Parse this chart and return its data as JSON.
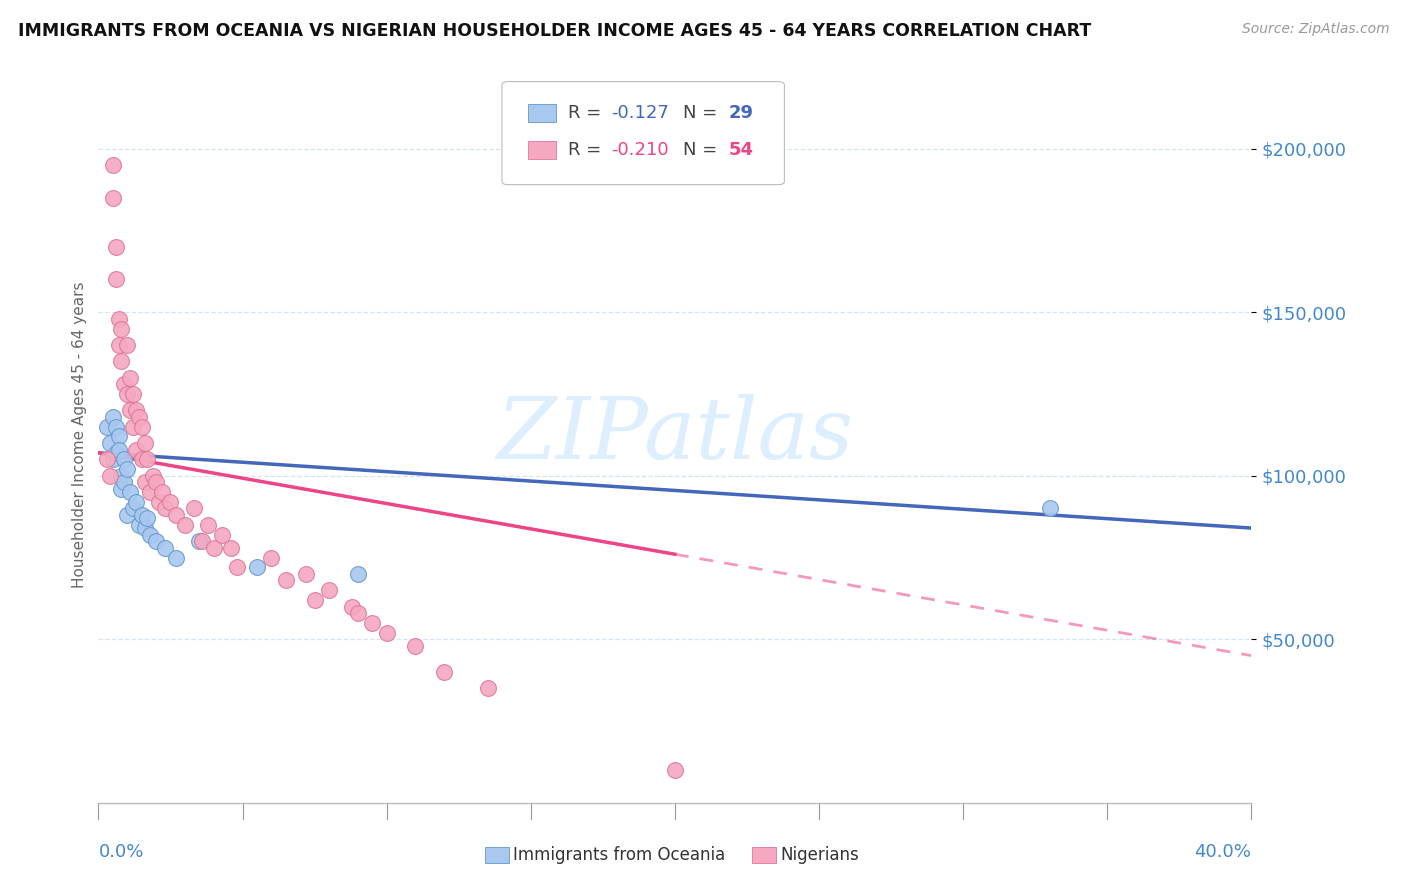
{
  "title": "IMMIGRANTS FROM OCEANIA VS NIGERIAN HOUSEHOLDER INCOME AGES 45 - 64 YEARS CORRELATION CHART",
  "source": "Source: ZipAtlas.com",
  "ylabel": "Householder Income Ages 45 - 64 years",
  "xmin": 0.0,
  "xmax": 0.4,
  "ymin": 0,
  "ymax": 225000,
  "yticks": [
    50000,
    100000,
    150000,
    200000
  ],
  "ytick_labels": [
    "$50,000",
    "$100,000",
    "$150,000",
    "$200,000"
  ],
  "color_blue": "#A8C8F0",
  "color_pink": "#F5A8C0",
  "color_blue_edge": "#6699CC",
  "color_pink_edge": "#DD7799",
  "color_trendline_blue": "#4466BB",
  "color_trendline_pink": "#EE4488",
  "color_axis_labels": "#4488CC",
  "watermark_color": "#DDEEFF",
  "oceania_x": [
    0.003,
    0.004,
    0.005,
    0.005,
    0.006,
    0.006,
    0.007,
    0.007,
    0.008,
    0.008,
    0.009,
    0.009,
    0.01,
    0.01,
    0.011,
    0.012,
    0.013,
    0.014,
    0.015,
    0.016,
    0.017,
    0.018,
    0.02,
    0.023,
    0.027,
    0.035,
    0.055,
    0.09,
    0.33
  ],
  "oceania_y": [
    115000,
    110000,
    118000,
    105000,
    115000,
    107000,
    112000,
    108000,
    100000,
    96000,
    105000,
    98000,
    102000,
    88000,
    95000,
    90000,
    92000,
    85000,
    88000,
    84000,
    87000,
    82000,
    80000,
    78000,
    75000,
    80000,
    72000,
    70000,
    90000
  ],
  "nigerian_x": [
    0.003,
    0.004,
    0.005,
    0.005,
    0.006,
    0.006,
    0.007,
    0.007,
    0.008,
    0.008,
    0.009,
    0.01,
    0.01,
    0.011,
    0.011,
    0.012,
    0.012,
    0.013,
    0.013,
    0.014,
    0.015,
    0.015,
    0.016,
    0.016,
    0.017,
    0.018,
    0.019,
    0.02,
    0.021,
    0.022,
    0.023,
    0.025,
    0.027,
    0.03,
    0.033,
    0.036,
    0.038,
    0.04,
    0.043,
    0.046,
    0.048,
    0.06,
    0.065,
    0.072,
    0.075,
    0.08,
    0.088,
    0.09,
    0.095,
    0.1,
    0.11,
    0.12,
    0.135,
    0.2
  ],
  "nigerian_y": [
    105000,
    100000,
    195000,
    185000,
    170000,
    160000,
    148000,
    140000,
    145000,
    135000,
    128000,
    140000,
    125000,
    130000,
    120000,
    125000,
    115000,
    120000,
    108000,
    118000,
    115000,
    105000,
    110000,
    98000,
    105000,
    95000,
    100000,
    98000,
    92000,
    95000,
    90000,
    92000,
    88000,
    85000,
    90000,
    80000,
    85000,
    78000,
    82000,
    78000,
    72000,
    75000,
    68000,
    70000,
    62000,
    65000,
    60000,
    58000,
    55000,
    52000,
    48000,
    40000,
    35000,
    10000
  ],
  "trendline_blue_x0": 0.0,
  "trendline_blue_y0": 107000,
  "trendline_blue_x1": 0.4,
  "trendline_blue_y1": 84000,
  "trendline_pink_x0": 0.0,
  "trendline_pink_y0": 107000,
  "trendline_pink_x1_solid": 0.2,
  "trendline_pink_y1_solid": 76000,
  "trendline_pink_x1_dash": 0.4,
  "trendline_pink_y1_dash": 45000
}
